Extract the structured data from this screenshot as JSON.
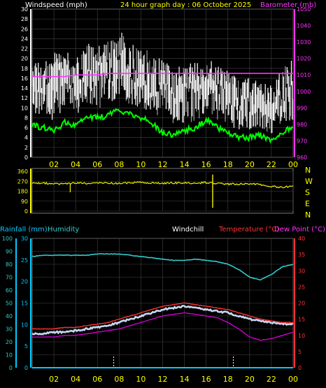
{
  "header": {
    "title_left": "Windspeed (mph)",
    "title_center": "24 hour graph day : 06 October 2025",
    "title_right": "Barometer (mb)"
  },
  "lower_header": {
    "rainfall": "Rainfall (mm)",
    "humidity": "Humidity",
    "windchill": "Windchill",
    "temperature": "Temperature (°C)",
    "dewpoint": "Dew Point (°C)"
  },
  "colors": {
    "windspeed": "#ffffff",
    "gust": "#9a9a9a",
    "barometer": "#ff33ff",
    "wind_avg": "#00ff00",
    "direction": "#e6e600",
    "rainfall": "#00ccff",
    "humidity": "#33cccc",
    "windchill": "#c8d6f0",
    "temperature": "#ff3333",
    "dewpoint": "#cc00cc",
    "axis_yellow": "#ffff00",
    "grid": "#444444"
  },
  "chart_data": [
    {
      "type": "line",
      "title": "24 hour graph day : 06 October 2025",
      "xlabel": "",
      "x_ticks": [
        "02",
        "04",
        "06",
        "08",
        "10",
        "12",
        "14",
        "16",
        "18",
        "20",
        "22",
        "00"
      ],
      "ylabel": "Windspeed (mph)",
      "ylim": [
        0,
        30
      ],
      "y_ticks": [
        0,
        2,
        4,
        6,
        8,
        10,
        12,
        14,
        16,
        18,
        20,
        22,
        24,
        26,
        28,
        30
      ],
      "y2label": "Barometer (mb)",
      "y2lim": [
        960,
        1050
      ],
      "y2_ticks": [
        960,
        970,
        980,
        990,
        1000,
        1010,
        1020,
        1030,
        1040,
        1050
      ],
      "x": [
        0,
        1,
        2,
        3,
        4,
        5,
        6,
        7,
        8,
        9,
        10,
        11,
        12,
        13,
        14,
        15,
        16,
        17,
        18,
        19,
        20,
        21,
        22,
        23,
        24
      ],
      "series": [
        {
          "name": "Windspeed (mph)",
          "axis": "left",
          "band": true,
          "low": [
            10,
            9,
            9,
            11,
            10,
            12,
            11,
            12,
            13,
            12,
            11,
            10,
            9,
            8,
            8,
            9,
            10,
            9,
            8,
            7,
            7,
            7,
            6,
            8,
            9
          ],
          "high": [
            19,
            18,
            20,
            21,
            19,
            22,
            21,
            23,
            24,
            23,
            21,
            20,
            18,
            17,
            17,
            18,
            19,
            17,
            16,
            15,
            15,
            14,
            13,
            17,
            19
          ]
        },
        {
          "name": "",
          "axis": "left",
          "values": [
            6.5,
            6,
            5.5,
            7,
            6.5,
            8,
            8,
            8.5,
            9.5,
            9,
            8,
            7,
            5,
            4.5,
            5.5,
            6,
            7.5,
            6,
            5,
            4,
            4,
            4.5,
            3.5,
            5,
            6.5
          ]
        },
        {
          "name": "Barometer (mb)",
          "axis": "right",
          "values": [
            1009,
            1009,
            1009,
            1009,
            1010,
            1010,
            1010,
            1011,
            1011,
            1011,
            1011,
            1011,
            1011,
            1011,
            1011,
            1011,
            1011,
            1011,
            1011,
            1011,
            1011,
            1011,
            1011,
            1011,
            1011
          ]
        }
      ]
    },
    {
      "type": "line",
      "ylim": [
        0,
        360
      ],
      "y_ticks": [
        0,
        90,
        180,
        270,
        360
      ],
      "compass": [
        "N",
        "W",
        "S",
        "E",
        "N"
      ],
      "x": [
        0,
        1,
        2,
        3,
        4,
        5,
        6,
        7,
        8,
        9,
        10,
        11,
        12,
        13,
        14,
        15,
        16,
        17,
        18,
        19,
        20,
        21,
        22,
        23,
        24
      ],
      "series": [
        {
          "name": "",
          "values": [
            250,
            255,
            245,
            250,
            255,
            250,
            252,
            255,
            250,
            255,
            258,
            255,
            252,
            255,
            255,
            252,
            258,
            250,
            245,
            245,
            245,
            240,
            225,
            215,
            230
          ]
        }
      ]
    },
    {
      "type": "line",
      "x_ticks": [
        "02",
        "04",
        "06",
        "08",
        "10",
        "12",
        "14",
        "16",
        "18",
        "20",
        "22",
        "00"
      ],
      "y_left_outer": {
        "label": "Humidity",
        "ticks": [
          0,
          10,
          20,
          30,
          40,
          50,
          60,
          70,
          80,
          90,
          100
        ],
        "lim": [
          0,
          100
        ]
      },
      "y_left_inner": {
        "label": "Rainfall (mm)",
        "ticks": [
          0,
          5,
          10,
          15,
          20,
          25,
          30
        ],
        "lim": [
          0,
          30
        ]
      },
      "y_right": {
        "label": "Temperature (°C)",
        "ticks": [
          0,
          5,
          10,
          15,
          20,
          25,
          30,
          35,
          40
        ],
        "lim": [
          0,
          40
        ]
      },
      "x": [
        0,
        1,
        2,
        3,
        4,
        5,
        6,
        7,
        8,
        9,
        10,
        11,
        12,
        13,
        14,
        15,
        16,
        17,
        18,
        19,
        20,
        21,
        22,
        23,
        24
      ],
      "series": [
        {
          "name": "Humidity",
          "axis": "left_outer",
          "values": [
            86,
            87,
            87,
            87,
            87,
            87,
            88,
            88,
            88,
            87,
            86,
            85,
            84,
            83,
            83,
            84,
            83,
            82,
            80,
            76,
            70,
            68,
            72,
            78,
            80
          ]
        },
        {
          "name": "Rainfall (mm)",
          "axis": "left_inner",
          "values": [
            0,
            0,
            0,
            0,
            0,
            0,
            0,
            0,
            0,
            0,
            0,
            0,
            0,
            0,
            0,
            0,
            0,
            0,
            0,
            0,
            0,
            0,
            0,
            0,
            0
          ]
        },
        {
          "name": "Windchill",
          "axis": "right",
          "values": [
            10.5,
            10.5,
            11,
            11,
            11.5,
            12,
            12.5,
            13,
            14,
            15,
            16,
            17,
            18,
            18.5,
            19,
            18.5,
            18,
            17.5,
            17,
            16,
            15,
            14.5,
            14,
            13.5,
            13.5
          ]
        },
        {
          "name": "Temperature (°C)",
          "axis": "right",
          "values": [
            12,
            12,
            12,
            12.5,
            12.5,
            13,
            13.5,
            14,
            15,
            16,
            17,
            18,
            19,
            19.5,
            20,
            19.5,
            19,
            18.5,
            18,
            17,
            16,
            15,
            14.5,
            14,
            14
          ]
        },
        {
          "name": "Dew Point (°C)",
          "axis": "right",
          "values": [
            9.5,
            9.5,
            9.5,
            10,
            10,
            10.5,
            11,
            11.5,
            12,
            13,
            14,
            15,
            16,
            16.5,
            17,
            16.5,
            16,
            15.5,
            14,
            12,
            9.5,
            8.5,
            9,
            10,
            11
          ]
        }
      ]
    }
  ]
}
